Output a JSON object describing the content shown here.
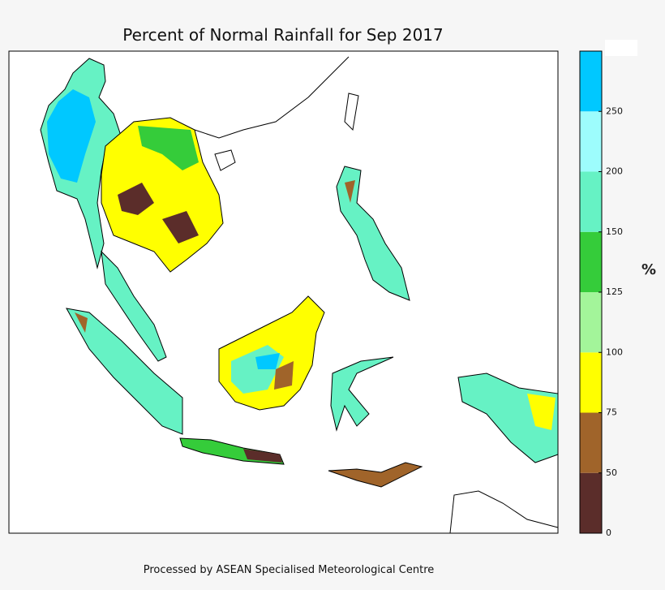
{
  "title": "Percent of Normal Rainfall for Sep 2017",
  "colorbar": {
    "label": "%",
    "ticks": [
      0,
      50,
      75,
      100,
      125,
      150,
      200,
      250
    ],
    "colors": [
      "#5b2d2a",
      "#a0642a",
      "#ffff00",
      "#a3f59a",
      "#35cc3a",
      "#66f2c4",
      "#9dfdfd",
      "#00c8ff"
    ]
  },
  "footer": "Processed by ASEAN Specialised Meteorological Centre"
}
